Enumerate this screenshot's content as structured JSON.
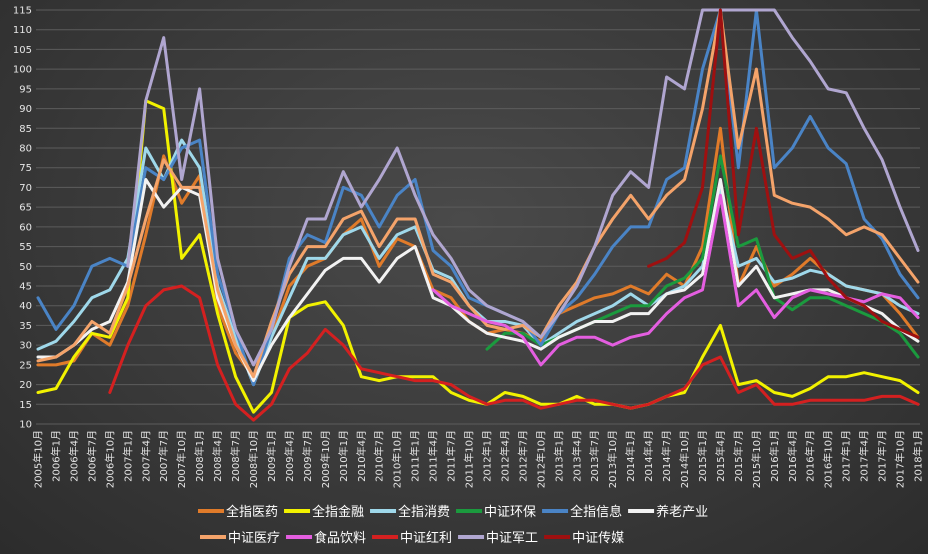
{
  "chart_data": {
    "type": "line",
    "x_labels": [
      "2005年10月",
      "2006年1月",
      "2006年4月",
      "2006年7月",
      "2006年10月",
      "2007年1月",
      "2007年4月",
      "2007年7月",
      "2007年10月",
      "2008年1月",
      "2008年4月",
      "2008年7月",
      "2008年10月",
      "2009年1月",
      "2009年4月",
      "2009年7月",
      "2009年10月",
      "2010年1月",
      "2010年4月",
      "2010年7月",
      "2010年10月",
      "2011年1月",
      "2011年4月",
      "2011年7月",
      "2011年10月",
      "2012年1月",
      "2012年4月",
      "2012年7月",
      "2012年10月",
      "2013年1月",
      "2013年4月",
      "2013年7月",
      "2013年10月",
      "2014年1月",
      "2014年4月",
      "2014年7月",
      "2014年10月",
      "2015年1月",
      "2015年4月",
      "2015年7月",
      "2015年10月",
      "2016年1月",
      "2016年4月",
      "2016年7月",
      "2016年10月",
      "2017年1月",
      "2017年4月",
      "2017年7月",
      "2017年10月",
      "2018年1月"
    ],
    "ylim": [
      10,
      115
    ],
    "yticks": [
      10,
      15,
      20,
      25,
      30,
      35,
      40,
      45,
      50,
      55,
      60,
      65,
      70,
      75,
      80,
      85,
      90,
      95,
      100,
      105,
      110,
      115
    ],
    "grid": true,
    "legend_position": "bottom",
    "series": [
      {
        "name": "全指医药",
        "color": "#e07b2a",
        "values": [
          25,
          25,
          26,
          33,
          30,
          40,
          58,
          78,
          66,
          73,
          40,
          28,
          22,
          32,
          45,
          50,
          52,
          58,
          62,
          50,
          57,
          55,
          44,
          42,
          36,
          33,
          34,
          33,
          31,
          38,
          40,
          42,
          43,
          45,
          43,
          48,
          45,
          55,
          85,
          45,
          55,
          45,
          48,
          52,
          48,
          45,
          44,
          43,
          38,
          32
        ]
      },
      {
        "name": "全指金融",
        "color": "#f2f200",
        "values": [
          18,
          19,
          27,
          33,
          32,
          42,
          92,
          90,
          52,
          58,
          38,
          22,
          13,
          18,
          37,
          40,
          41,
          35,
          22,
          21,
          22,
          22,
          22,
          18,
          16,
          15,
          18,
          17,
          15,
          15,
          17,
          15,
          15,
          14,
          15,
          17,
          18,
          27,
          35,
          20,
          21,
          18,
          17,
          19,
          22,
          22,
          23,
          22,
          21,
          18
        ]
      },
      {
        "name": "全指消费",
        "color": "#9fd8ea",
        "values": [
          29,
          31,
          36,
          42,
          44,
          52,
          80,
          72,
          82,
          75,
          45,
          32,
          20,
          32,
          42,
          52,
          52,
          58,
          60,
          52,
          58,
          60,
          49,
          47,
          40,
          36,
          36,
          35,
          30,
          33,
          36,
          38,
          40,
          43,
          40,
          43,
          45,
          50,
          70,
          50,
          52,
          46,
          47,
          49,
          48,
          45,
          44,
          43,
          40,
          38
        ]
      },
      {
        "name": "中证环保",
        "color": "#1b9a3e",
        "values": [
          null,
          null,
          null,
          null,
          null,
          null,
          null,
          null,
          null,
          null,
          null,
          null,
          null,
          null,
          null,
          null,
          null,
          null,
          null,
          null,
          null,
          null,
          null,
          null,
          null,
          29,
          33,
          33,
          30,
          32,
          34,
          36,
          38,
          40,
          40,
          45,
          47,
          52,
          78,
          55,
          57,
          42,
          39,
          42,
          42,
          40,
          38,
          36,
          33,
          27
        ]
      },
      {
        "name": "全指信息",
        "color": "#4a84c6",
        "values": [
          42,
          34,
          40,
          50,
          52,
          50,
          75,
          72,
          80,
          82,
          48,
          34,
          20,
          34,
          52,
          58,
          56,
          70,
          68,
          60,
          68,
          72,
          54,
          50,
          42,
          40,
          38,
          36,
          30,
          38,
          42,
          48,
          55,
          60,
          60,
          72,
          75,
          100,
          115,
          75,
          115,
          75,
          80,
          88,
          80,
          76,
          62,
          57,
          48,
          42
        ]
      },
      {
        "name": "养老产业",
        "color": "#f2f2f2",
        "values": [
          27,
          27,
          30,
          34,
          36,
          46,
          72,
          65,
          70,
          68,
          42,
          30,
          21,
          30,
          37,
          43,
          49,
          52,
          52,
          46,
          52,
          55,
          42,
          40,
          36,
          33,
          32,
          31,
          29,
          32,
          34,
          36,
          36,
          38,
          38,
          43,
          44,
          48,
          72,
          45,
          50,
          42,
          43,
          44,
          44,
          42,
          40,
          38,
          34,
          31
        ]
      },
      {
        "name": "中证医疗",
        "color": "#f4a36a",
        "values": [
          26,
          27,
          30,
          36,
          33,
          45,
          62,
          77,
          70,
          70,
          44,
          30,
          22,
          36,
          48,
          55,
          55,
          62,
          64,
          55,
          62,
          62,
          48,
          46,
          40,
          35,
          34,
          35,
          32,
          40,
          46,
          55,
          62,
          68,
          62,
          68,
          72,
          90,
          115,
          80,
          100,
          68,
          66,
          65,
          62,
          58,
          60,
          58,
          52,
          46
        ]
      },
      {
        "name": "食品饮料",
        "color": "#e45ee0",
        "values": [
          null,
          null,
          null,
          null,
          null,
          null,
          null,
          null,
          null,
          null,
          null,
          null,
          null,
          null,
          null,
          null,
          null,
          null,
          null,
          null,
          null,
          null,
          44,
          40,
          38,
          36,
          35,
          32,
          25,
          30,
          32,
          32,
          30,
          32,
          33,
          38,
          42,
          44,
          68,
          40,
          44,
          37,
          42,
          44,
          43,
          42,
          41,
          43,
          42,
          37
        ]
      },
      {
        "name": "中证红利",
        "color": "#d42020",
        "values": [
          null,
          null,
          null,
          null,
          18,
          30,
          40,
          44,
          45,
          42,
          25,
          15,
          11,
          15,
          24,
          28,
          34,
          30,
          24,
          23,
          22,
          21,
          21,
          20,
          17,
          15,
          16,
          16,
          14,
          15,
          16,
          16,
          15,
          14,
          15,
          17,
          19,
          25,
          27,
          18,
          20,
          15,
          15,
          16,
          16,
          16,
          16,
          17,
          17,
          15
        ]
      },
      {
        "name": "中证军工",
        "color": "#b0a6d0",
        "values": [
          null,
          null,
          null,
          null,
          null,
          50,
          92,
          108,
          72,
          95,
          52,
          34,
          25,
          34,
          50,
          62,
          62,
          74,
          65,
          72,
          80,
          68,
          58,
          52,
          44,
          40,
          38,
          36,
          32,
          38,
          45,
          55,
          68,
          74,
          70,
          98,
          95,
          115,
          115,
          115,
          115,
          115,
          108,
          102,
          95,
          94,
          85,
          77,
          65,
          54
        ]
      },
      {
        "name": "中证传媒",
        "color": "#9e1010",
        "values": [
          null,
          null,
          null,
          null,
          null,
          null,
          null,
          null,
          null,
          null,
          null,
          null,
          null,
          null,
          null,
          null,
          null,
          null,
          null,
          null,
          null,
          null,
          null,
          null,
          null,
          null,
          null,
          null,
          null,
          null,
          null,
          null,
          null,
          null,
          50,
          52,
          56,
          70,
          115,
          58,
          85,
          58,
          52,
          54,
          47,
          42,
          40,
          36,
          34,
          32
        ]
      }
    ]
  }
}
